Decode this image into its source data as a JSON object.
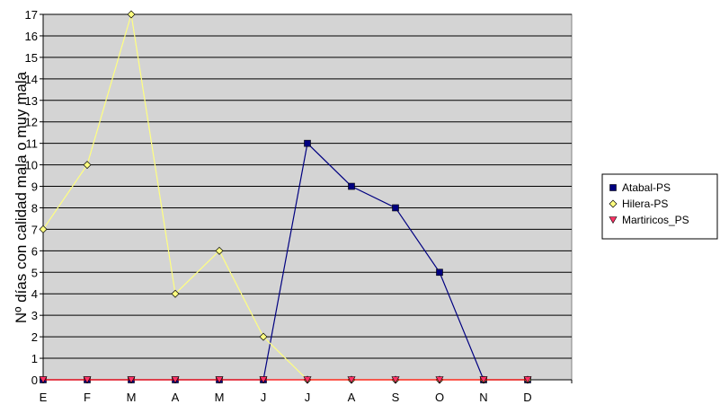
{
  "chart_data": {
    "type": "line",
    "title": "",
    "xlabel": "",
    "ylabel": "Nº días con calidad mala o muy mala",
    "categories": [
      "E",
      "F",
      "M",
      "A",
      "M",
      "J",
      "J",
      "A",
      "S",
      "O",
      "N",
      "D"
    ],
    "ylim": [
      0,
      17
    ],
    "yticks": [
      0,
      1,
      2,
      3,
      4,
      5,
      6,
      7,
      8,
      9,
      10,
      11,
      12,
      13,
      14,
      15,
      16,
      17
    ],
    "grid": true,
    "legend_position": "right",
    "plot_background": "#d4d4d4",
    "series": [
      {
        "name": "Atabal-PS",
        "line_color": "#000080",
        "marker": "square",
        "marker_color": "#000080",
        "values": [
          0,
          0,
          0,
          0,
          0,
          0,
          11,
          9,
          8,
          5,
          0,
          0
        ]
      },
      {
        "name": "Hilera-PS",
        "line_color": "#ffff80",
        "marker": "diamond",
        "marker_color": "#ffff80",
        "values": [
          7,
          10,
          17,
          4,
          6,
          2,
          0,
          0,
          0,
          0,
          0,
          0
        ]
      },
      {
        "name": "Martiricos_PS",
        "line_color": "#ff0000",
        "marker": "triangle-down",
        "marker_color": "#ff3366",
        "values": [
          0,
          0,
          0,
          0,
          0,
          0,
          0,
          0,
          0,
          0,
          0,
          0
        ]
      }
    ]
  }
}
